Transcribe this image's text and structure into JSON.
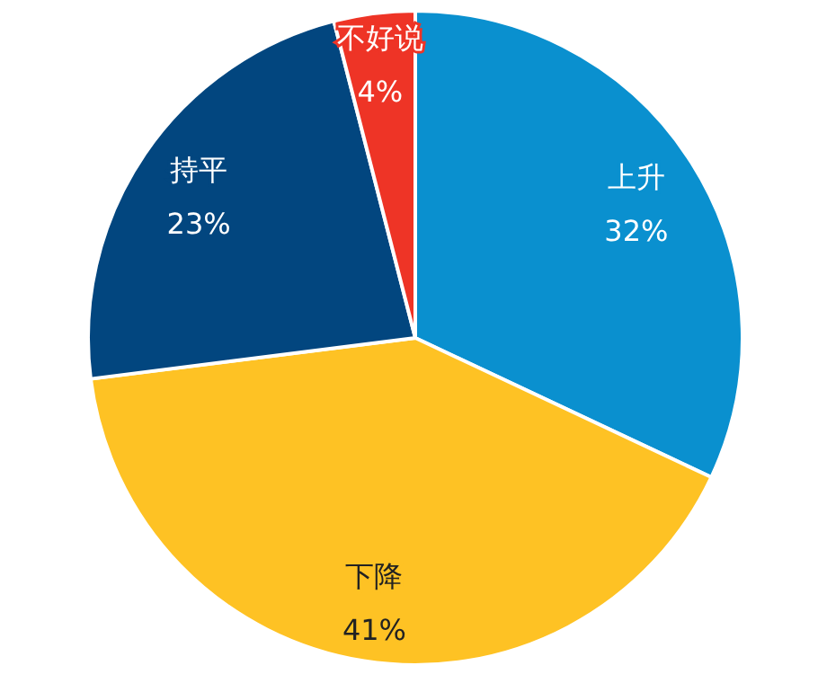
{
  "chart_data": {
    "type": "pie",
    "categories": [
      "上升",
      "下降",
      "持平",
      "不好说"
    ],
    "values": [
      32,
      41,
      23,
      4
    ],
    "value_labels": [
      "32%",
      "41%",
      "23%",
      "4%"
    ],
    "colors": [
      "#0a90cf",
      "#fec224",
      "#02467f",
      "#ee3426"
    ]
  }
}
